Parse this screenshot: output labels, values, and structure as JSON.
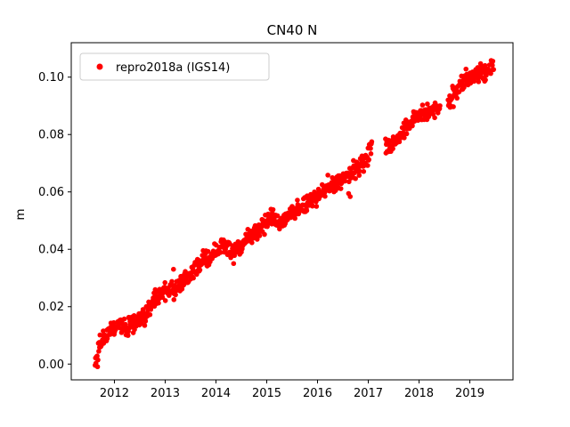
{
  "figure": {
    "background": "#ffffff"
  },
  "chart_data": {
    "type": "scatter",
    "title": "CN40 N",
    "xlabel": "",
    "ylabel": "m",
    "legend_position": "upper left",
    "grid": false,
    "series": [
      {
        "name": "repro2018a (IGS14)",
        "color": "#ff0000",
        "marker": "dot"
      }
    ],
    "x_ticks": [
      {
        "value": 2012,
        "label": "2012"
      },
      {
        "value": 2013,
        "label": "2013"
      },
      {
        "value": 2014,
        "label": "2014"
      },
      {
        "value": 2015,
        "label": "2015"
      },
      {
        "value": 2016,
        "label": "2016"
      },
      {
        "value": 2017,
        "label": "2017"
      },
      {
        "value": 2018,
        "label": "2018"
      },
      {
        "value": 2019,
        "label": "2019"
      }
    ],
    "y_ticks": [
      {
        "value": 0.0,
        "label": "0.00"
      },
      {
        "value": 0.02,
        "label": "0.02"
      },
      {
        "value": 0.04,
        "label": "0.04"
      },
      {
        "value": 0.06,
        "label": "0.06"
      },
      {
        "value": 0.08,
        "label": "0.08"
      },
      {
        "value": 0.1,
        "label": "0.10"
      }
    ],
    "xlim": [
      2011.15,
      2019.85
    ],
    "ylim": [
      -0.0055,
      0.112
    ],
    "data_x_range": [
      2011.62,
      2019.47
    ],
    "trend_anchors": [
      [
        2011.62,
        0.001
      ],
      [
        2011.7,
        0.006
      ],
      [
        2011.8,
        0.009
      ],
      [
        2011.9,
        0.012
      ],
      [
        2012.0,
        0.013
      ],
      [
        2012.1,
        0.015
      ],
      [
        2012.2,
        0.012
      ],
      [
        2012.35,
        0.014
      ],
      [
        2012.45,
        0.015
      ],
      [
        2012.6,
        0.016
      ],
      [
        2012.75,
        0.022
      ],
      [
        2012.9,
        0.025
      ],
      [
        2013.0,
        0.026
      ],
      [
        2013.15,
        0.026
      ],
      [
        2013.3,
        0.028
      ],
      [
        2013.45,
        0.03
      ],
      [
        2013.6,
        0.033
      ],
      [
        2013.8,
        0.036
      ],
      [
        2014.0,
        0.039
      ],
      [
        2014.15,
        0.041
      ],
      [
        2014.35,
        0.039
      ],
      [
        2014.5,
        0.041
      ],
      [
        2014.7,
        0.045
      ],
      [
        2014.85,
        0.047
      ],
      [
        2015.0,
        0.049
      ],
      [
        2015.1,
        0.051
      ],
      [
        2015.25,
        0.049
      ],
      [
        2015.4,
        0.051
      ],
      [
        2015.6,
        0.053
      ],
      [
        2015.8,
        0.056
      ],
      [
        2015.95,
        0.058
      ],
      [
        2016.15,
        0.061
      ],
      [
        2016.35,
        0.063
      ],
      [
        2016.5,
        0.064
      ],
      [
        2016.65,
        0.066
      ],
      [
        2016.85,
        0.069
      ],
      [
        2017.0,
        0.073
      ],
      [
        2017.06,
        0.075
      ],
      [
        2017.35,
        0.0755
      ],
      [
        2017.5,
        0.077
      ],
      [
        2017.65,
        0.08
      ],
      [
        2017.8,
        0.083
      ],
      [
        2017.95,
        0.086
      ],
      [
        2018.05,
        0.087
      ],
      [
        2018.15,
        0.0875
      ],
      [
        2018.3,
        0.089
      ],
      [
        2018.41,
        0.09
      ],
      [
        2018.58,
        0.092
      ],
      [
        2018.7,
        0.095
      ],
      [
        2018.8,
        0.097
      ],
      [
        2018.9,
        0.098
      ],
      [
        2019.0,
        0.099
      ],
      [
        2019.1,
        0.1
      ],
      [
        2019.2,
        0.1015
      ],
      [
        2019.3,
        0.102
      ],
      [
        2019.4,
        0.1035
      ],
      [
        2019.47,
        0.105
      ]
    ],
    "gaps": [
      [
        2017.07,
        2017.34
      ],
      [
        2018.42,
        2018.57
      ]
    ],
    "noise_std_m": 0.0015,
    "sample_step_years": 0.008
  }
}
